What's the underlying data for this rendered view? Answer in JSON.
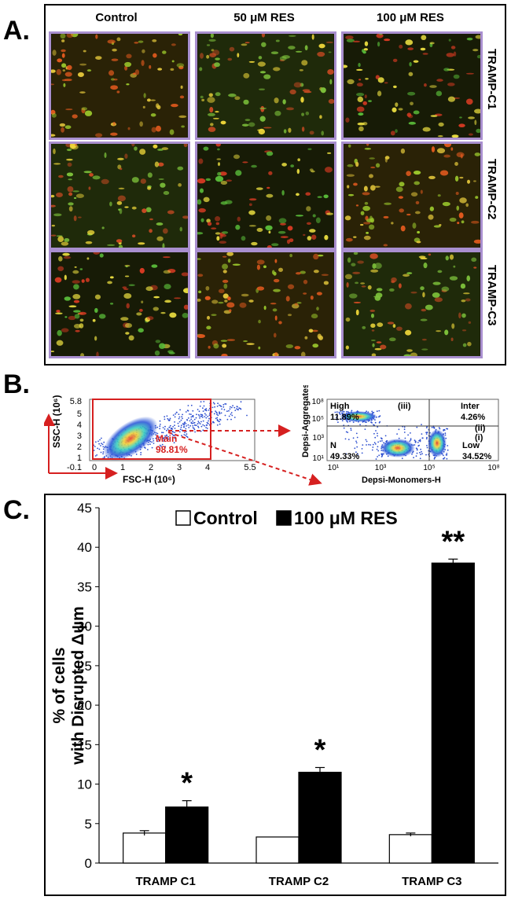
{
  "panelA": {
    "letter": "A.",
    "columns": [
      "Control",
      "50 μM RES",
      "100 μM RES"
    ],
    "rows": [
      "TRAMP-C1",
      "TRAMP-C2",
      "TRAMP-C3"
    ]
  },
  "panelB": {
    "letter": "B.",
    "scatter1": {
      "yaxis_label": "SSC-H (10⁶)",
      "xaxis_label": "FSC-H (10⁶)",
      "y_ticks": [
        "5.8",
        "5",
        "4",
        "3",
        "2",
        "1",
        "-0.1"
      ],
      "x_ticks": [
        "0",
        "1",
        "2",
        "3",
        "4",
        "5.5"
      ],
      "gate_name": "Main",
      "gate_pct": "98.81%"
    },
    "scatter2": {
      "yaxis_label": "Depsi-Aggregates-H",
      "xaxis_label": "Depsi-Monomers-H",
      "y_ticks": [
        "10⁸",
        "10⁵",
        "10³",
        "10¹"
      ],
      "x_ticks": [
        "10¹",
        "10³",
        "10⁵",
        "10⁸"
      ],
      "quadrants": {
        "high_label": "High",
        "high_pct": "11.89%",
        "inter_label": "Inter",
        "inter_pct": "4.26%",
        "n_label": "N",
        "n_pct": "49.33%",
        "low_label": "Low",
        "low_pct": "34.52%"
      },
      "markers": [
        "(iii)",
        "(ii)",
        "(i)"
      ]
    }
  },
  "panelC": {
    "letter": "C."
  },
  "chart_data": {
    "type": "bar",
    "title": "",
    "ylabel": "% of cells with Disrupted Δψm",
    "xlabel": "",
    "categories": [
      "TRAMP C1",
      "TRAMP C2",
      "TRAMP C3"
    ],
    "ylim": [
      0,
      45
    ],
    "yticks": [
      0,
      5,
      10,
      15,
      20,
      25,
      30,
      35,
      40,
      45
    ],
    "legend_position": "top",
    "series": [
      {
        "name": "Control",
        "values": [
          3.8,
          3.3,
          3.6
        ],
        "errors": [
          0.3,
          0.0,
          0.2
        ],
        "color": "#ffffff"
      },
      {
        "name": "100 μM RES",
        "values": [
          7.1,
          11.5,
          38.0
        ],
        "errors": [
          0.8,
          0.6,
          0.5
        ],
        "color": "#000000"
      }
    ],
    "annotations": [
      "*",
      "*",
      "**"
    ]
  }
}
